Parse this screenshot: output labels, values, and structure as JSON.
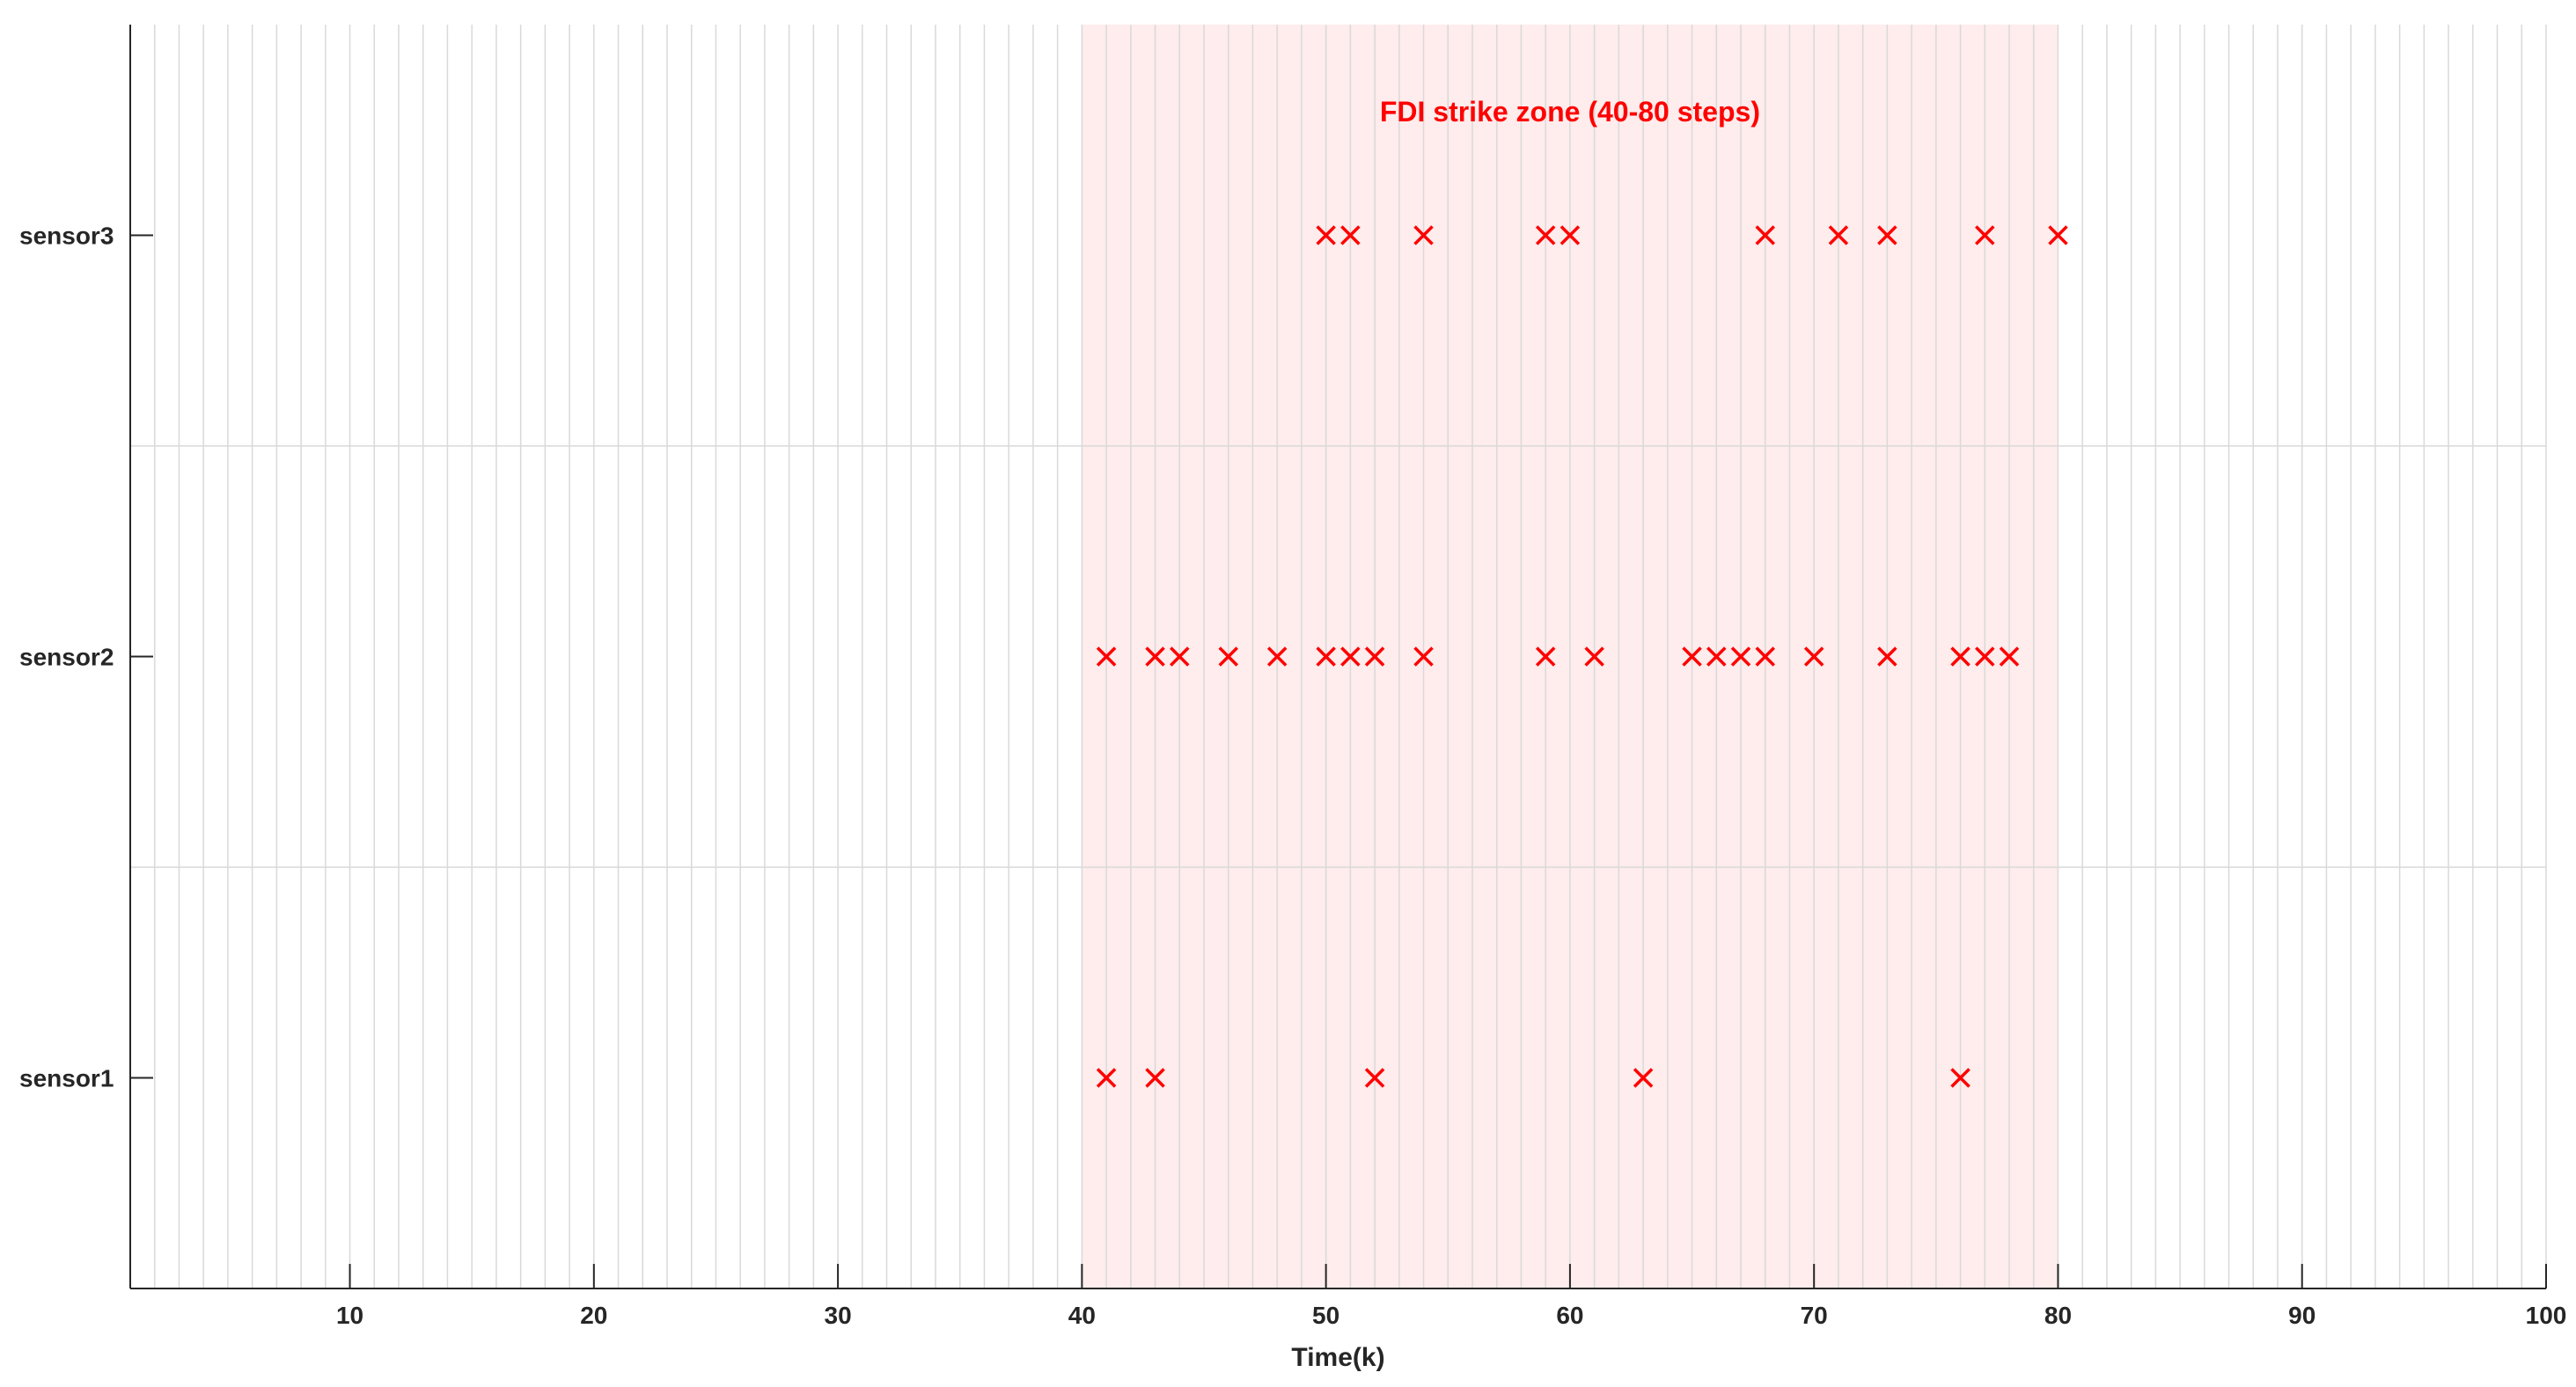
{
  "chart_data": {
    "type": "scatter",
    "title": "",
    "xlabel": "Time(k)",
    "ylabel": "",
    "xlim": [
      1,
      100
    ],
    "x_ticks": [
      10,
      20,
      30,
      40,
      50,
      60,
      70,
      80,
      90,
      100
    ],
    "x_grid_step": 1,
    "categories": [
      "sensor1",
      "sensor2",
      "sensor3"
    ],
    "grid": true,
    "marker": "x",
    "marker_color": "#ff0000",
    "zone": {
      "x_start": 40,
      "x_end": 80,
      "label": "FDI strike zone (40-80 steps)",
      "fill_color": "#ffecec",
      "label_color": "#ff0000"
    },
    "series": [
      {
        "category": "sensor1",
        "x": [
          41,
          43,
          52,
          63,
          76
        ]
      },
      {
        "category": "sensor2",
        "x": [
          41,
          43,
          44,
          46,
          48,
          50,
          51,
          52,
          54,
          59,
          61,
          65,
          66,
          67,
          68,
          70,
          73,
          76,
          77,
          78
        ]
      },
      {
        "category": "sensor3",
        "x": [
          50,
          51,
          54,
          59,
          60,
          68,
          71,
          73,
          77,
          80
        ]
      }
    ]
  }
}
